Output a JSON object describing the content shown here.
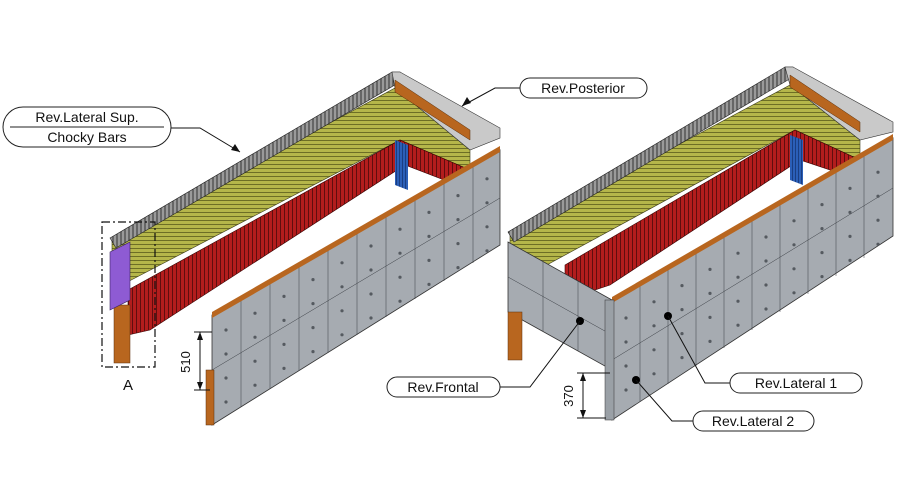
{
  "labels": {
    "lateral_sup_line1": "Rev.Lateral Sup.",
    "lateral_sup_line2": "Chocky Bars",
    "posterior": "Rev.Posterior",
    "frontal": "Rev.Frontal",
    "lateral_1": "Rev.Lateral 1",
    "lateral_2": "Rev.Lateral 2",
    "detail": "A"
  },
  "dimensions": {
    "left_height": "510",
    "right_height": "370"
  },
  "colors": {
    "steel_plate": "#a6abb1",
    "bolt": "#555a60",
    "red_lining": "#b31d1d",
    "olive_lining": "#b5b64a",
    "chocky_bar": "#7a7a7a",
    "wood": "#b8661f",
    "purple_insert": "#8e5bd3",
    "blue_end": "#2b5fb8"
  }
}
